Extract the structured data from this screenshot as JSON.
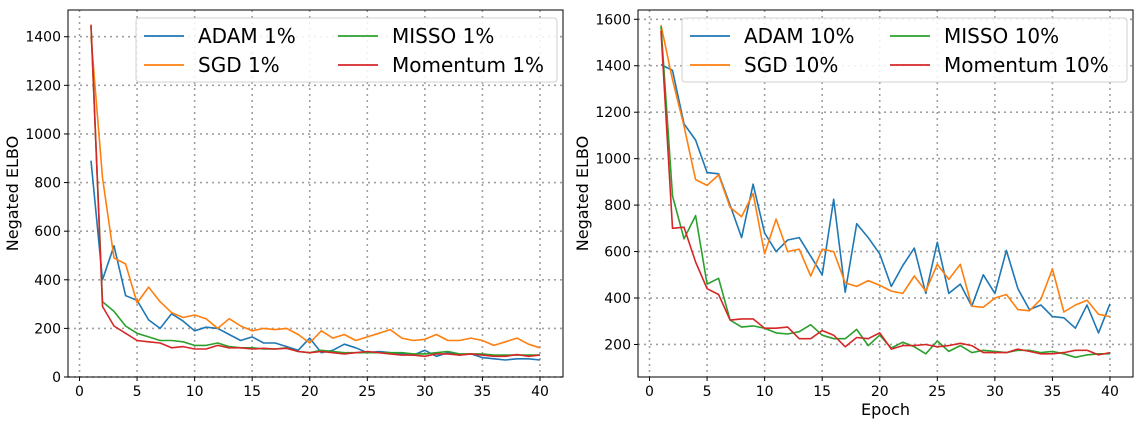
{
  "colors": {
    "blue": "#1f77b4",
    "orange": "#ff7f0e",
    "green": "#2ca02c",
    "red": "#d62728"
  },
  "chart_data": [
    {
      "type": "line",
      "xlabel": "",
      "ylabel": "Negated ELBO",
      "xlim": [
        -1,
        42
      ],
      "ylim": [
        0,
        1510
      ],
      "xticks": [
        0,
        5,
        10,
        15,
        20,
        25,
        30,
        35,
        40
      ],
      "yticks": [
        0,
        200,
        400,
        600,
        800,
        1000,
        1200,
        1400
      ],
      "grid": true,
      "legend": {
        "placement": "top-right",
        "columns": 2
      },
      "x": [
        1,
        2,
        3,
        4,
        5,
        6,
        7,
        8,
        9,
        10,
        11,
        12,
        13,
        14,
        15,
        16,
        17,
        18,
        19,
        20,
        21,
        22,
        23,
        24,
        25,
        26,
        27,
        28,
        29,
        30,
        31,
        32,
        33,
        34,
        35,
        36,
        37,
        38,
        39,
        40
      ],
      "series": [
        {
          "name": "ADAM 1%",
          "color": "#1f77b4",
          "values": [
            890,
            400,
            540,
            335,
            315,
            235,
            200,
            260,
            230,
            190,
            205,
            200,
            175,
            150,
            165,
            140,
            140,
            125,
            110,
            160,
            100,
            110,
            135,
            120,
            100,
            105,
            100,
            95,
            90,
            110,
            85,
            100,
            90,
            95,
            80,
            75,
            70,
            75,
            75,
            70
          ]
        },
        {
          "name": "SGD 1%",
          "color": "#ff7f0e",
          "values": [
            1400,
            820,
            490,
            465,
            305,
            370,
            310,
            265,
            245,
            255,
            240,
            200,
            240,
            210,
            190,
            200,
            195,
            200,
            175,
            140,
            190,
            160,
            175,
            150,
            165,
            180,
            195,
            160,
            150,
            155,
            175,
            150,
            150,
            160,
            150,
            130,
            145,
            160,
            135,
            120
          ]
        },
        {
          "name": "MISSO 1%",
          "color": "#2ca02c",
          "values": [
            1445,
            310,
            270,
            210,
            180,
            165,
            150,
            150,
            145,
            130,
            130,
            140,
            125,
            120,
            120,
            115,
            115,
            120,
            105,
            100,
            110,
            105,
            100,
            100,
            100,
            100,
            100,
            100,
            95,
            95,
            100,
            105,
            95,
            95,
            95,
            90,
            90,
            90,
            90,
            90
          ]
        },
        {
          "name": "Momentum 1%",
          "color": "#d62728",
          "values": [
            1450,
            290,
            210,
            180,
            150,
            145,
            140,
            120,
            125,
            115,
            115,
            130,
            120,
            120,
            115,
            118,
            115,
            118,
            105,
            100,
            105,
            100,
            95,
            100,
            105,
            100,
            95,
            90,
            90,
            85,
            95,
            95,
            90,
            95,
            90,
            85,
            85,
            92,
            85,
            90
          ]
        }
      ]
    },
    {
      "type": "line",
      "xlabel": "Epoch",
      "ylabel": "Negated ELBO",
      "xlim": [
        -1,
        42
      ],
      "ylim": [
        60,
        1640
      ],
      "xticks": [
        0,
        5,
        10,
        15,
        20,
        25,
        30,
        35,
        40
      ],
      "yticks": [
        200,
        400,
        600,
        800,
        1000,
        1200,
        1400,
        1600
      ],
      "grid": true,
      "legend": {
        "placement": "top-right",
        "columns": 2
      },
      "x": [
        1,
        2,
        3,
        4,
        5,
        6,
        7,
        8,
        9,
        10,
        11,
        12,
        13,
        14,
        15,
        16,
        17,
        18,
        19,
        20,
        21,
        22,
        23,
        24,
        25,
        26,
        27,
        28,
        29,
        30,
        31,
        32,
        33,
        34,
        35,
        36,
        37,
        38,
        39,
        40
      ],
      "series": [
        {
          "name": "ADAM 10%",
          "color": "#1f77b4",
          "values": [
            1405,
            1380,
            1150,
            1080,
            940,
            935,
            800,
            660,
            890,
            680,
            600,
            650,
            660,
            580,
            500,
            825,
            425,
            720,
            660,
            590,
            450,
            540,
            615,
            420,
            640,
            420,
            460,
            365,
            500,
            420,
            605,
            440,
            350,
            370,
            320,
            315,
            270,
            370,
            250,
            375
          ]
        },
        {
          "name": "SGD 10%",
          "color": "#ff7f0e",
          "values": [
            1575,
            1340,
            1140,
            910,
            885,
            930,
            790,
            750,
            850,
            590,
            740,
            600,
            610,
            495,
            610,
            600,
            465,
            450,
            475,
            455,
            430,
            420,
            495,
            430,
            545,
            480,
            545,
            365,
            360,
            400,
            415,
            350,
            345,
            395,
            525,
            340,
            370,
            390,
            330,
            320
          ]
        },
        {
          "name": "MISSO 10%",
          "color": "#2ca02c",
          "values": [
            1570,
            840,
            655,
            755,
            460,
            485,
            305,
            275,
            280,
            270,
            250,
            245,
            255,
            285,
            240,
            225,
            225,
            265,
            195,
            240,
            185,
            210,
            190,
            160,
            215,
            170,
            195,
            165,
            175,
            170,
            165,
            175,
            175,
            165,
            170,
            160,
            145,
            155,
            160,
            160
          ]
        },
        {
          "name": "Momentum 10%",
          "color": "#d62728",
          "values": [
            1550,
            700,
            705,
            555,
            440,
            415,
            305,
            310,
            310,
            270,
            270,
            275,
            225,
            225,
            260,
            240,
            190,
            230,
            225,
            250,
            180,
            195,
            195,
            200,
            190,
            195,
            205,
            195,
            165,
            165,
            165,
            180,
            170,
            160,
            160,
            165,
            175,
            175,
            155,
            165
          ]
        }
      ]
    }
  ]
}
